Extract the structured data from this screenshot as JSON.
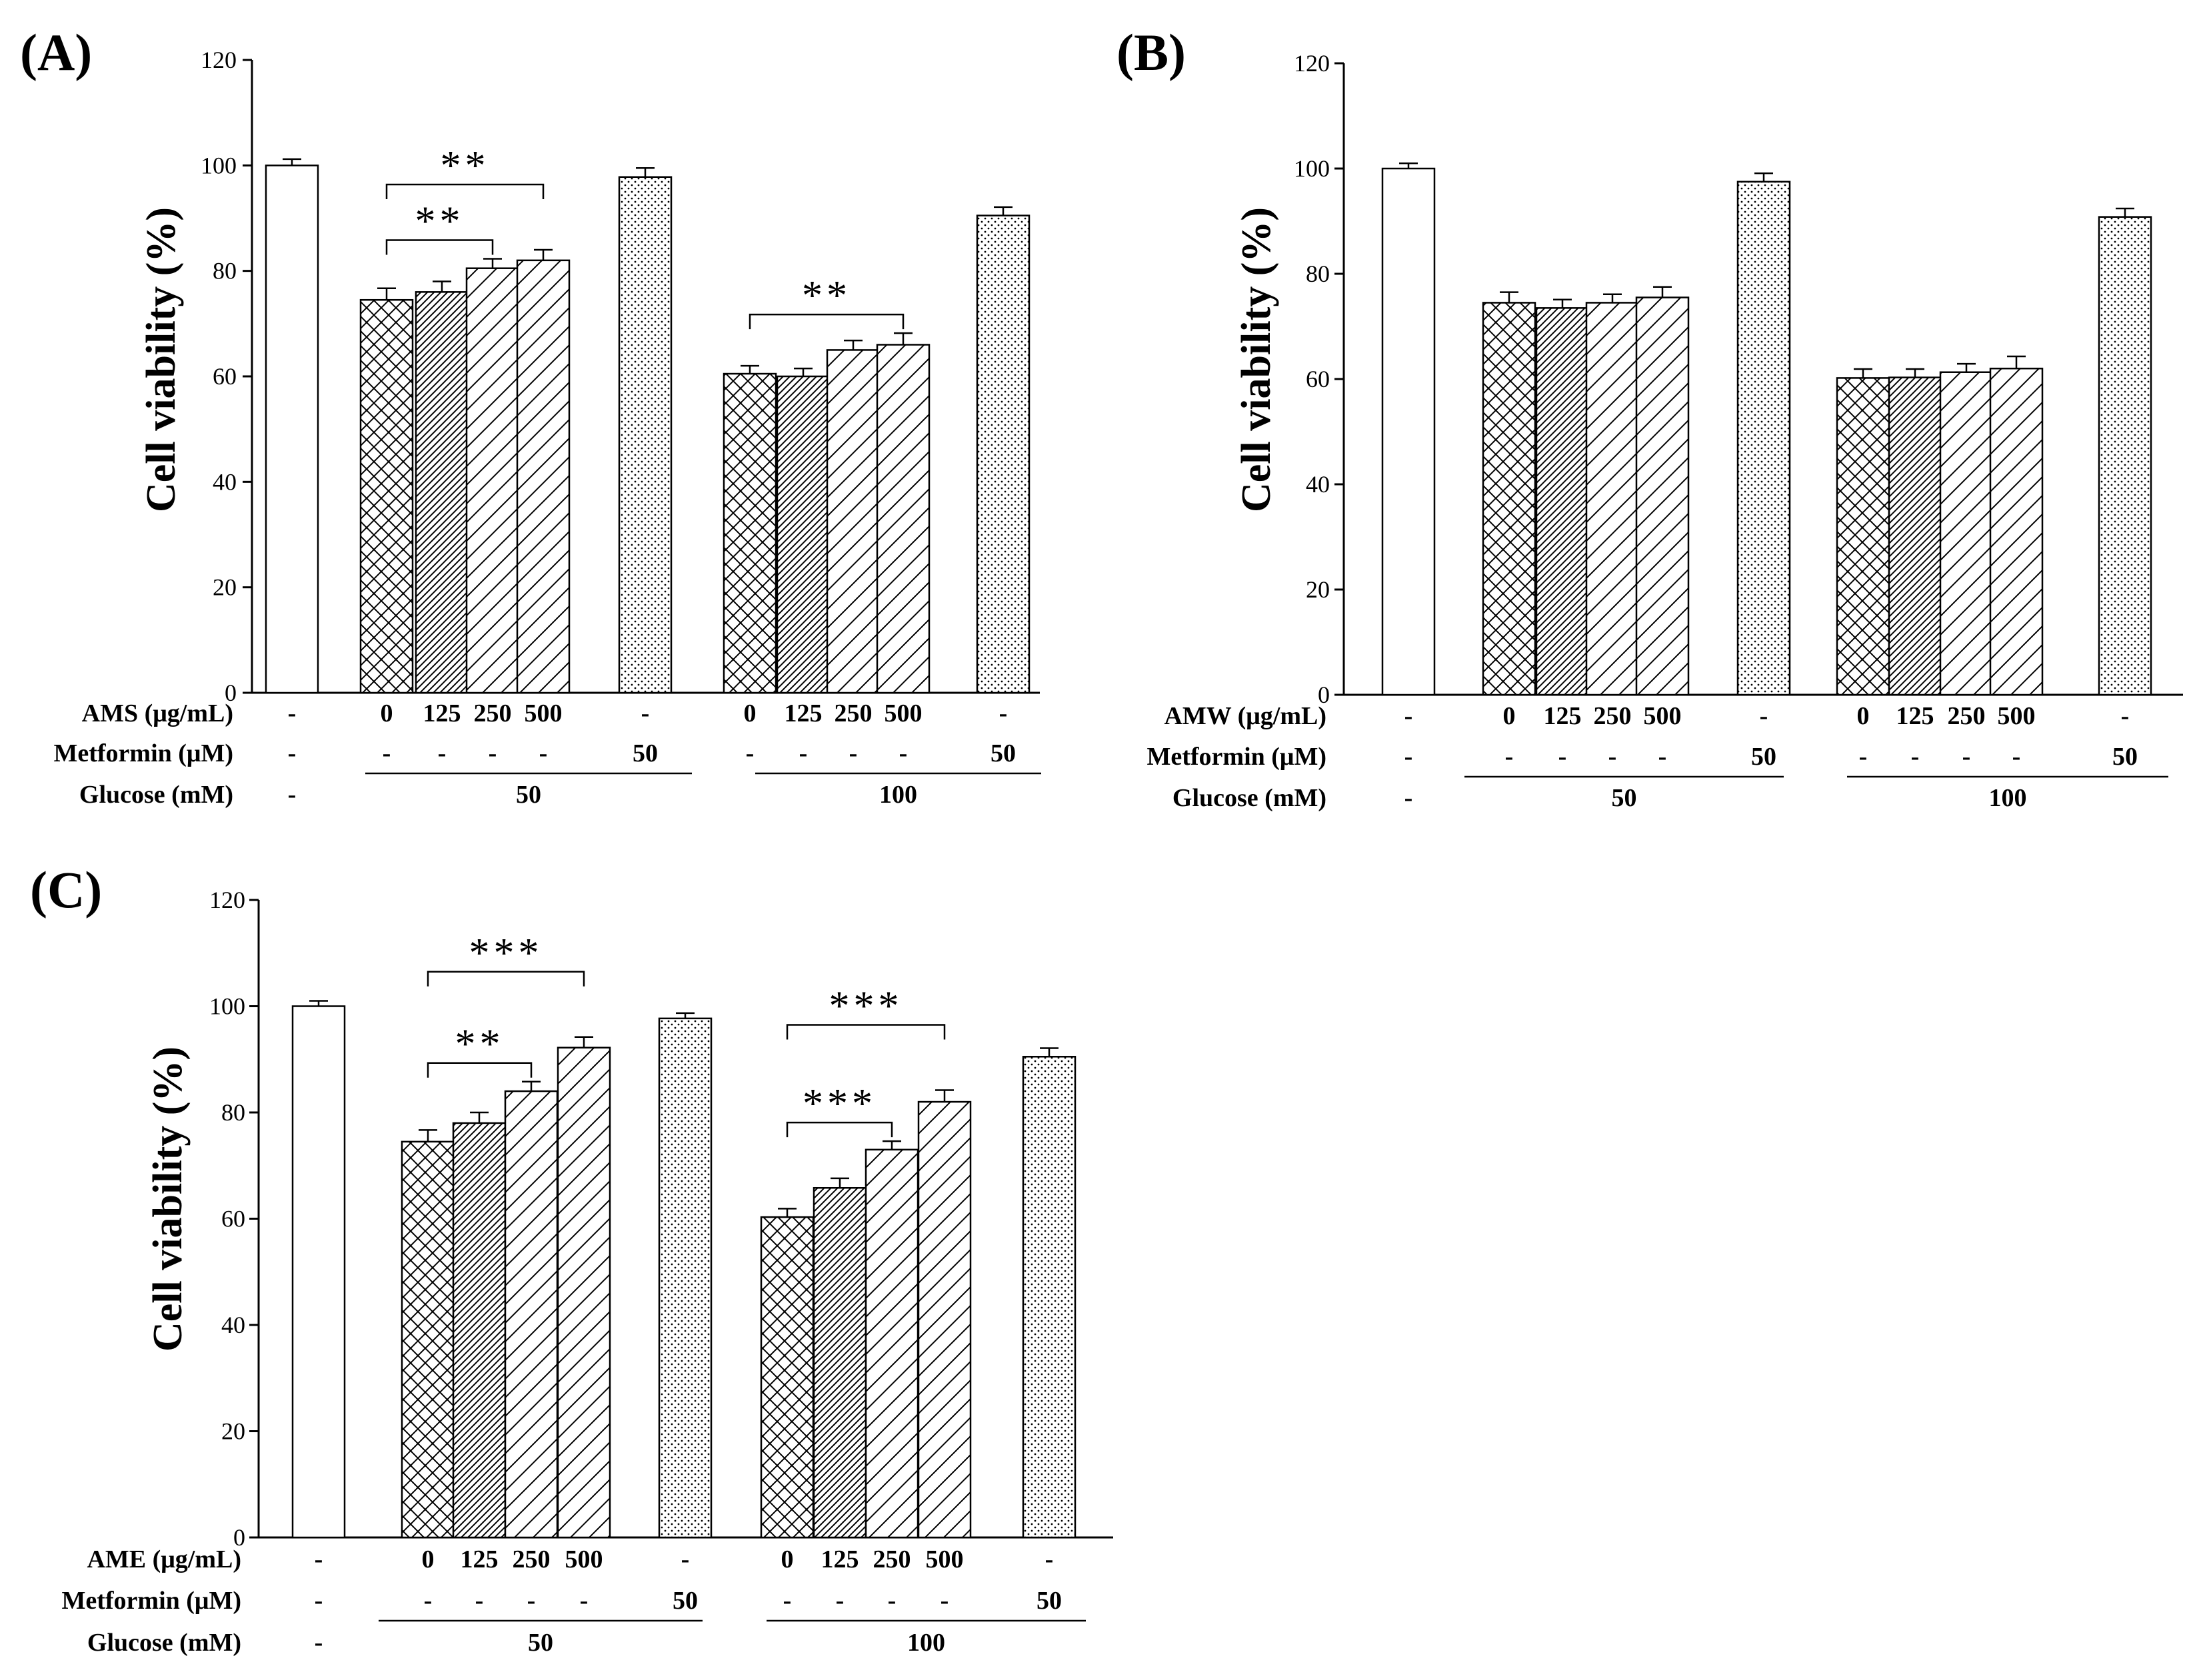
{
  "chart_data": [
    {
      "type": "bar",
      "panel": "(A)",
      "ylabel": "Cell viability (%)",
      "ylim": [
        0,
        120
      ],
      "yticks": [
        0,
        20,
        40,
        60,
        80,
        100,
        120
      ],
      "rows": [
        {
          "label": "AMS (μg/mL)",
          "cells": [
            "-",
            "0",
            "125",
            "250",
            "500",
            "-",
            "0",
            "125",
            "250",
            "500",
            "-"
          ]
        },
        {
          "label": "Metformin (μM)",
          "cells": [
            "-",
            "-",
            "-",
            "-",
            "-",
            "50",
            "-",
            "-",
            "-",
            "-",
            "50"
          ]
        },
        {
          "label": "Glucose (mM)",
          "cells": [
            "-",
            "50",
            "100"
          ]
        }
      ],
      "values": [
        100,
        74.5,
        76,
        80.5,
        82,
        97.8,
        60.5,
        60,
        65,
        66,
        90.5
      ],
      "errors": [
        1.2,
        2.2,
        2.0,
        1.8,
        2.0,
        1.7,
        1.5,
        1.5,
        1.8,
        2.2,
        1.6
      ],
      "patterns": [
        "none",
        "cross",
        "dense",
        "diag",
        "diag",
        "dots",
        "cross",
        "dense",
        "diag",
        "diag",
        "dots"
      ],
      "significance": [
        {
          "from": 1,
          "to": 3,
          "label": "**"
        },
        {
          "from": 1,
          "to": 4,
          "label": "**"
        },
        {
          "from": 6,
          "to": 9,
          "label": "**"
        }
      ]
    },
    {
      "type": "bar",
      "panel": "(B)",
      "ylabel": "Cell viability (%)",
      "ylim": [
        0,
        120
      ],
      "yticks": [
        0,
        20,
        40,
        60,
        80,
        100,
        120
      ],
      "rows": [
        {
          "label": "AMW (μg/mL)",
          "cells": [
            "-",
            "0",
            "125",
            "250",
            "500",
            "-",
            "0",
            "125",
            "250",
            "500",
            "-"
          ]
        },
        {
          "label": "Metformin (μM)",
          "cells": [
            "-",
            "-",
            "-",
            "-",
            "-",
            "50",
            "-",
            "-",
            "-",
            "-",
            "50"
          ]
        },
        {
          "label": "Glucose (mM)",
          "cells": [
            "-",
            "50",
            "100"
          ]
        }
      ],
      "values": [
        100,
        74.5,
        73.5,
        74.5,
        75.5,
        97.5,
        60.2,
        60.3,
        61.3,
        62,
        90.8
      ],
      "errors": [
        1.0,
        2.0,
        1.6,
        1.6,
        2.0,
        1.6,
        1.7,
        1.6,
        1.6,
        2.3,
        1.6
      ],
      "patterns": [
        "none",
        "cross",
        "dense",
        "diag",
        "diag",
        "dots",
        "cross",
        "dense",
        "diag",
        "diag",
        "dots"
      ],
      "significance": []
    },
    {
      "type": "bar",
      "panel": "(C)",
      "ylabel": "Cell viability (%)",
      "ylim": [
        0,
        120
      ],
      "yticks": [
        0,
        20,
        40,
        60,
        80,
        100,
        120
      ],
      "rows": [
        {
          "label": "AME (μg/mL)",
          "cells": [
            "-",
            "0",
            "125",
            "250",
            "500",
            "-",
            "0",
            "125",
            "250",
            "500",
            "-"
          ]
        },
        {
          "label": "Metformin (μM)",
          "cells": [
            "-",
            "-",
            "-",
            "-",
            "-",
            "50",
            "-",
            "-",
            "-",
            "-",
            "50"
          ]
        },
        {
          "label": "Glucose (mM)",
          "cells": [
            "-",
            "50",
            "100"
          ]
        }
      ],
      "values": [
        100,
        74.5,
        78,
        84,
        92.2,
        97.7,
        60.3,
        65.8,
        73,
        82,
        90.5
      ],
      "errors": [
        1.0,
        2.2,
        2.0,
        1.8,
        2.0,
        1.0,
        1.6,
        1.8,
        1.6,
        2.2,
        1.6
      ],
      "patterns": [
        "none",
        "cross",
        "dense",
        "diag",
        "diag",
        "dots",
        "cross",
        "dense",
        "diag",
        "diag",
        "dots"
      ],
      "significance": [
        {
          "from": 1,
          "to": 3,
          "label": "**"
        },
        {
          "from": 1,
          "to": 4,
          "label": "***"
        },
        {
          "from": 6,
          "to": 8,
          "label": "***"
        },
        {
          "from": 6,
          "to": 9,
          "label": "***"
        }
      ]
    }
  ]
}
